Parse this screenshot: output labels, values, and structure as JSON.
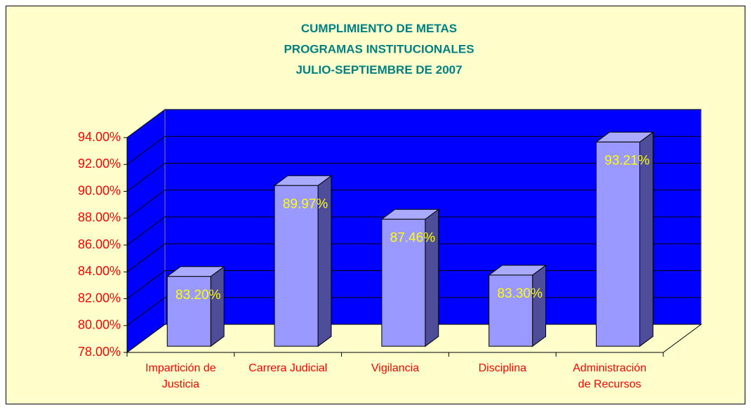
{
  "chart_data": {
    "type": "bar3d",
    "title": "CUMPLIMIENTO DE METAS\nPROGRAMAS INSTITUCIONALES\nJULIO-SEPTIEMBRE DE 2007",
    "categories": [
      "Impartición de\nJusticia",
      "Carrera Judicial",
      "Vigilancia",
      "Disciplina",
      "Administración\nde Recursos"
    ],
    "values": [
      83.2,
      89.97,
      87.46,
      83.3,
      93.21
    ],
    "value_labels": [
      "83.20%",
      "89.97%",
      "87.46%",
      "83.30%",
      "93.21%"
    ],
    "color": "#9999ff",
    "ylim": [
      78,
      94
    ],
    "yticks": [
      {
        "value": 78,
        "label": "78.00%"
      },
      {
        "value": 80,
        "label": "80.00%"
      },
      {
        "value": 82,
        "label": "82.00%"
      },
      {
        "value": 84,
        "label": "84.00%"
      },
      {
        "value": 86,
        "label": "86.00%"
      },
      {
        "value": 88,
        "label": "88.00%"
      },
      {
        "value": 90,
        "label": "90.00%"
      },
      {
        "value": 92,
        "label": "92.00%"
      },
      {
        "value": 94,
        "label": "94.00%"
      }
    ],
    "grid": true
  }
}
